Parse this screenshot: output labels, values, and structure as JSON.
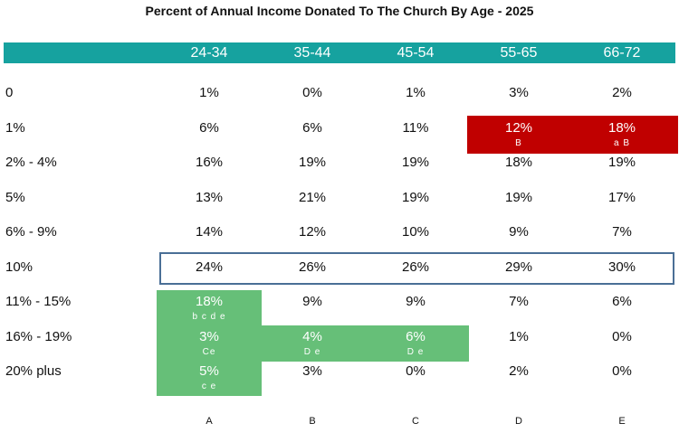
{
  "title": "Percent of Annual Income Donated To The Church By Age - 2025",
  "columns": [
    "24-34",
    "35-44",
    "45-54",
    "55-65",
    "66-72"
  ],
  "column_letters": [
    "A",
    "B",
    "C",
    "D",
    "E"
  ],
  "rows": [
    {
      "label": "0",
      "values": [
        "1%",
        "0%",
        "1%",
        "3%",
        "2%"
      ],
      "sig": [
        "",
        "",
        "",
        "",
        ""
      ]
    },
    {
      "label": "1%",
      "values": [
        "6%",
        "6%",
        "11%",
        "12%",
        "18%"
      ],
      "sig": [
        "",
        "",
        "",
        "B",
        "a B"
      ]
    },
    {
      "label": "2% - 4%",
      "values": [
        "16%",
        "19%",
        "19%",
        "18%",
        "19%"
      ],
      "sig": [
        "",
        "",
        "",
        "",
        ""
      ]
    },
    {
      "label": "5%",
      "values": [
        "13%",
        "21%",
        "19%",
        "19%",
        "17%"
      ],
      "sig": [
        "",
        "",
        "",
        "",
        ""
      ]
    },
    {
      "label": "6% - 9%",
      "values": [
        "14%",
        "12%",
        "10%",
        "9%",
        "7%"
      ],
      "sig": [
        "",
        "",
        "",
        "",
        ""
      ]
    },
    {
      "label": "10%",
      "values": [
        "24%",
        "26%",
        "26%",
        "29%",
        "30%"
      ],
      "sig": [
        "",
        "",
        "",
        "",
        ""
      ]
    },
    {
      "label": "11% - 15%",
      "values": [
        "18%",
        "9%",
        "9%",
        "7%",
        "6%"
      ],
      "sig": [
        "b c d e",
        "",
        "",
        "",
        ""
      ]
    },
    {
      "label": "16% - 19%",
      "values": [
        "3%",
        "4%",
        "6%",
        "1%",
        "0%"
      ],
      "sig": [
        "Ce",
        "D e",
        "D e",
        "",
        ""
      ]
    },
    {
      "label": "20% plus",
      "values": [
        "5%",
        "3%",
        "0%",
        "2%",
        "0%"
      ],
      "sig": [
        "c e",
        "",
        "",
        "",
        ""
      ]
    }
  ],
  "colors": {
    "header": "#16a29f",
    "highlight_high": "#c00000",
    "highlight_low": "#66bf78",
    "row_box": "#4a6f96"
  }
}
